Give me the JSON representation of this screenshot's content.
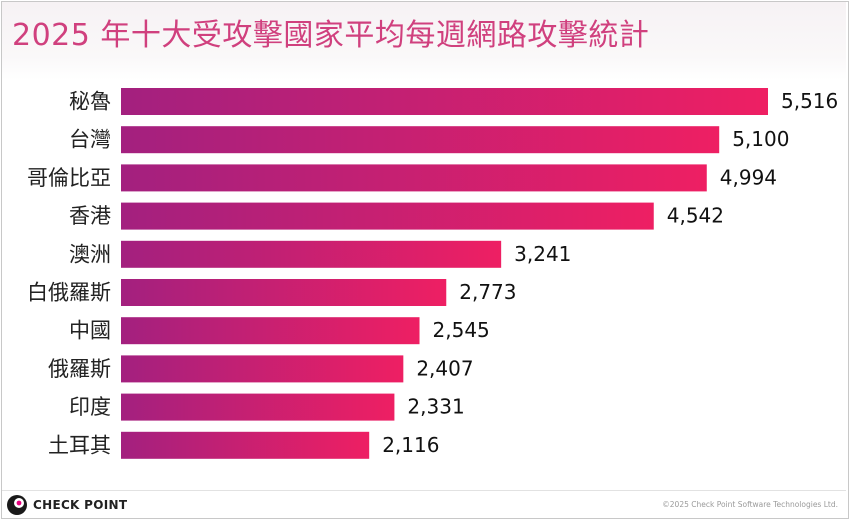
{
  "header": {
    "title": "2025 年十大受攻擊國家平均每週網路攻擊統計"
  },
  "chart_data": {
    "type": "bar",
    "orientation": "horizontal",
    "categories": [
      "秘魯",
      "台灣",
      "哥倫比亞",
      "香港",
      "澳洲",
      "白俄羅斯",
      "中國",
      "俄羅斯",
      "印度",
      "土耳其"
    ],
    "values": [
      5516,
      5100,
      4994,
      4542,
      3241,
      2773,
      2545,
      2407,
      2331,
      2116
    ],
    "value_labels": [
      "5,516",
      "5,100",
      "4,994",
      "4,542",
      "3,241",
      "2,773",
      "2,545",
      "2,407",
      "2,331",
      "2,116"
    ],
    "xlim": [
      0,
      5516
    ],
    "grid": false,
    "legend": "none",
    "colors": {
      "bar_start": "#a3207f",
      "bar_end": "#ee1f63"
    }
  },
  "footer": {
    "logo_text": "CHECK POINT",
    "copyright": "©2025 Check Point Software Technologies Ltd."
  }
}
